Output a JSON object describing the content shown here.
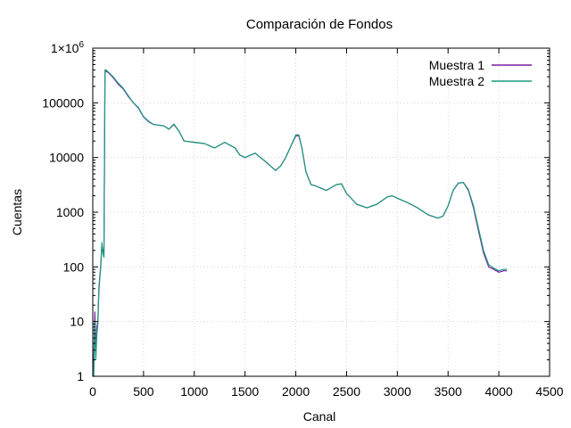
{
  "chart_data": {
    "type": "line",
    "title": "Comparación de Fondos",
    "xlabel": "Canal",
    "ylabel": "Cuentas",
    "xlim": [
      0,
      4500
    ],
    "ylim": [
      1,
      1000000
    ],
    "yscale": "log",
    "grid": true,
    "legend_position": "top-right",
    "xticks": [
      0,
      500,
      1000,
      1500,
      2000,
      2500,
      3000,
      3500,
      4000,
      4500
    ],
    "xtick_labels": [
      "0",
      "500",
      "1000",
      "1500",
      "2000",
      "2500",
      "3000",
      "3500",
      "4000",
      "4500"
    ],
    "yticks": [
      1,
      10,
      100,
      1000,
      10000,
      100000,
      1000000
    ],
    "ytick_labels": [
      "1",
      "10",
      "100",
      "1000",
      "10000",
      "100000"
    ],
    "ytick_top_mantissa": "1×10",
    "ytick_top_exponent": "6",
    "series": [
      {
        "name": "Muestra 1",
        "color": "#7b1fa2",
        "x": [
          0,
          10,
          20,
          30,
          40,
          50,
          60,
          70,
          80,
          90,
          100,
          110,
          120,
          130,
          150,
          200,
          250,
          300,
          350,
          400,
          450,
          500,
          550,
          600,
          700,
          750,
          800,
          850,
          900,
          1000,
          1100,
          1200,
          1300,
          1400,
          1450,
          1500,
          1550,
          1600,
          1700,
          1800,
          1850,
          1900,
          1950,
          2000,
          2030,
          2060,
          2100,
          2150,
          2200,
          2300,
          2400,
          2450,
          2500,
          2600,
          2700,
          2800,
          2900,
          2950,
          3000,
          3100,
          3200,
          3300,
          3400,
          3450,
          3500,
          3550,
          3600,
          3650,
          3700,
          3750,
          3800,
          3850,
          3900,
          3950,
          4000,
          4050,
          4080
        ],
        "y": [
          1,
          2,
          15,
          3,
          8,
          10,
          40,
          70,
          120,
          250,
          200,
          160,
          380000,
          380000,
          360000,
          290000,
          220000,
          180000,
          130000,
          100000,
          80000,
          55000,
          45000,
          40000,
          38000,
          33000,
          40000,
          30000,
          20000,
          19000,
          18000,
          15000,
          19000,
          15000,
          11000,
          10000,
          11000,
          12000,
          8500,
          5800,
          7000,
          10000,
          16000,
          25000,
          25000,
          15000,
          5500,
          3200,
          3000,
          2500,
          3200,
          3300,
          2200,
          1400,
          1200,
          1400,
          1900,
          2000,
          1800,
          1500,
          1200,
          900,
          780,
          850,
          1300,
          2500,
          3400,
          3500,
          2500,
          1200,
          450,
          180,
          100,
          90,
          80,
          85,
          85
        ]
      },
      {
        "name": "Muestra 2",
        "color": "#1a9b7e",
        "x": [
          0,
          10,
          20,
          30,
          40,
          50,
          60,
          70,
          80,
          90,
          100,
          110,
          120,
          130,
          150,
          200,
          250,
          300,
          350,
          400,
          450,
          500,
          550,
          600,
          700,
          750,
          800,
          850,
          900,
          1000,
          1100,
          1200,
          1300,
          1400,
          1450,
          1500,
          1550,
          1600,
          1700,
          1800,
          1850,
          1900,
          1950,
          2000,
          2030,
          2060,
          2100,
          2150,
          2200,
          2300,
          2400,
          2450,
          2500,
          2600,
          2700,
          2800,
          2900,
          2950,
          3000,
          3100,
          3200,
          3300,
          3400,
          3450,
          3500,
          3550,
          3600,
          3650,
          3700,
          3750,
          3800,
          3850,
          3900,
          3950,
          4000,
          4050,
          4080
        ],
        "y": [
          1,
          1,
          10,
          2,
          6,
          9,
          35,
          65,
          110,
          280,
          180,
          150,
          400000,
          400000,
          370000,
          300000,
          230000,
          185000,
          135000,
          100000,
          82000,
          56000,
          46000,
          40000,
          38000,
          33000,
          41000,
          30000,
          20000,
          19000,
          18000,
          15000,
          19000,
          15000,
          11000,
          10000,
          11000,
          12000,
          8500,
          5800,
          7000,
          10000,
          16000,
          26000,
          26000,
          15000,
          5500,
          3200,
          3000,
          2500,
          3200,
          3300,
          2200,
          1400,
          1200,
          1400,
          1900,
          2000,
          1800,
          1500,
          1200,
          900,
          780,
          850,
          1300,
          2500,
          3400,
          3500,
          2600,
          1300,
          500,
          200,
          110,
          95,
          85,
          90,
          90
        ]
      }
    ]
  }
}
